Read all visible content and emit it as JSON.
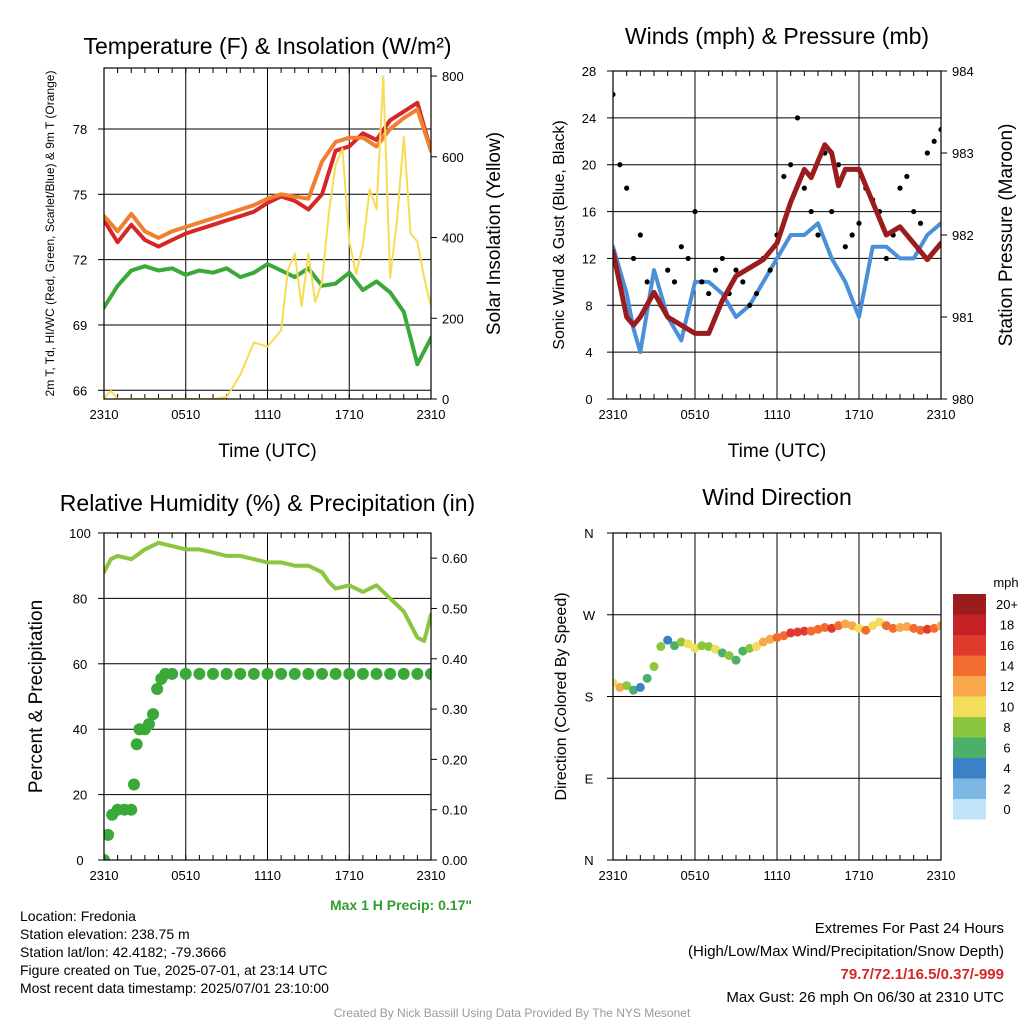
{
  "chart_data": [
    {
      "type": "line",
      "title": "Temperature (F) & Insolation (W/m²)",
      "xlabel": "Time (UTC)",
      "ylabel": "2m T, Td, HI/WC (Red, Green, Scarlet/Blue) & 9m T (Orange)",
      "y2label": "Solar Insolation (Yellow)",
      "x_ticks": [
        "2310",
        "0510",
        "1110",
        "1710",
        "2310"
      ],
      "yticks": [
        "66",
        "69",
        "72",
        "75",
        "78"
      ],
      "y2ticks": [
        "0",
        "200",
        "400",
        "600",
        "800"
      ],
      "ylim": [
        65.6,
        80.8
      ],
      "y2lim": [
        0,
        820
      ],
      "grid": true,
      "series": [
        {
          "name": "2m T",
          "color": "#d62728",
          "axis": "left",
          "x": [
            0,
            1,
            2,
            3,
            4,
            5,
            6,
            7,
            8,
            9,
            10,
            11,
            12,
            13,
            14,
            15,
            16,
            17,
            18,
            19,
            20,
            21,
            22,
            23,
            24
          ],
          "values": [
            73.8,
            72.8,
            73.6,
            72.9,
            72.6,
            72.9,
            73.2,
            73.4,
            73.6,
            73.8,
            74.0,
            74.2,
            74.6,
            74.9,
            74.7,
            74.3,
            75.0,
            77.0,
            77.2,
            77.8,
            77.5,
            78.4,
            78.8,
            79.2,
            77.0
          ]
        },
        {
          "name": "9m T",
          "color": "#f08030",
          "axis": "left",
          "x": [
            0,
            1,
            2,
            3,
            4,
            5,
            6,
            7,
            8,
            9,
            10,
            11,
            12,
            13,
            14,
            15,
            16,
            17,
            18,
            19,
            20,
            21,
            22,
            23,
            24
          ],
          "values": [
            74.0,
            73.3,
            74.1,
            73.3,
            73.0,
            73.3,
            73.5,
            73.7,
            73.9,
            74.1,
            74.3,
            74.5,
            74.8,
            75.0,
            74.9,
            74.8,
            76.5,
            77.4,
            77.6,
            77.6,
            77.2,
            78.0,
            78.5,
            78.9,
            77.0
          ]
        },
        {
          "name": "2m Td",
          "color": "#3aa93a",
          "axis": "left",
          "x": [
            0,
            1,
            2,
            3,
            4,
            5,
            6,
            7,
            8,
            9,
            10,
            11,
            12,
            13,
            14,
            15,
            16,
            17,
            18,
            19,
            20,
            21,
            22,
            23,
            24
          ],
          "values": [
            69.8,
            70.8,
            71.5,
            71.7,
            71.5,
            71.6,
            71.3,
            71.5,
            71.4,
            71.6,
            71.2,
            71.4,
            71.8,
            71.5,
            71.2,
            71.6,
            70.8,
            70.9,
            71.4,
            70.6,
            71.0,
            70.5,
            69.6,
            67.2,
            68.4
          ]
        },
        {
          "name": "Solar Insolation",
          "color": "#f7dc53",
          "axis": "right",
          "x": [
            0,
            0.5,
            1,
            2,
            3,
            4,
            5,
            6,
            7,
            8,
            9,
            10,
            11,
            12,
            13,
            13.5,
            14,
            14.5,
            15,
            15.5,
            16,
            16.5,
            17,
            17.5,
            18,
            18.5,
            19,
            19.5,
            20,
            20.5,
            21,
            21.5,
            22,
            22.5,
            23,
            23.5,
            24
          ],
          "values": [
            2,
            20,
            0,
            0,
            0,
            0,
            0,
            0,
            0,
            0,
            5,
            60,
            140,
            130,
            170,
            320,
            360,
            230,
            360,
            240,
            290,
            460,
            580,
            620,
            390,
            310,
            380,
            520,
            470,
            800,
            300,
            440,
            650,
            410,
            390,
            300,
            230
          ]
        }
      ]
    },
    {
      "type": "line",
      "title": "Winds (mph) & Pressure (mb)",
      "xlabel": "Time (UTC)",
      "ylabel": "Sonic Wind & Gust (Blue, Black)",
      "y2label": "Station Pressure (Maroon)",
      "x_ticks": [
        "2310",
        "0510",
        "1110",
        "1710",
        "2310"
      ],
      "yticks": [
        "0",
        "4",
        "8",
        "12",
        "16",
        "20",
        "24",
        "28"
      ],
      "y2ticks": [
        "980",
        "981",
        "982",
        "983",
        "984"
      ],
      "ylim": [
        0,
        28
      ],
      "y2lim": [
        980,
        984
      ],
      "grid": true,
      "series": [
        {
          "name": "Sonic Wind",
          "color": "#4a90d9",
          "axis": "left",
          "x": [
            0,
            1,
            1.5,
            2,
            3,
            4,
            5,
            6,
            7,
            8,
            9,
            10,
            11,
            12,
            13,
            14,
            15,
            16,
            17,
            18,
            19,
            20,
            21,
            22,
            23,
            24
          ],
          "values": [
            13,
            9,
            6,
            4,
            11,
            7,
            5,
            10,
            10,
            9,
            7,
            8,
            10,
            12,
            14,
            14,
            15,
            12,
            10,
            7,
            13,
            13,
            12,
            12,
            14,
            15
          ]
        },
        {
          "name": "Gust",
          "color": "#000000",
          "axis": "left",
          "style": "points",
          "x": [
            0,
            0.5,
            1,
            1.5,
            2,
            2.5,
            3,
            3.5,
            4,
            4.5,
            5,
            5.5,
            6,
            6.5,
            7,
            7.5,
            8,
            8.5,
            9,
            9.5,
            10,
            10.5,
            11,
            11.5,
            12,
            12.5,
            13,
            13.5,
            14,
            14.5,
            15,
            15.5,
            16,
            16.5,
            17,
            17.5,
            18,
            18.5,
            19,
            19.5,
            20,
            20.5,
            21,
            21.5,
            22,
            22.5,
            23,
            23.5,
            24
          ],
          "values": [
            26,
            20,
            18,
            12,
            14,
            10,
            9,
            8,
            11,
            10,
            13,
            12,
            16,
            10,
            9,
            11,
            12,
            9,
            11,
            10,
            8,
            9,
            12,
            11,
            14,
            19,
            20,
            24,
            18,
            16,
            14,
            21,
            16,
            20,
            13,
            14,
            15,
            18,
            17,
            16,
            12,
            14,
            18,
            19,
            16,
            15,
            21,
            22,
            23
          ]
        },
        {
          "name": "Station Pressure",
          "color": "#9b1c1c",
          "axis": "right",
          "x": [
            0,
            1,
            1.5,
            2,
            3,
            4,
            5,
            6,
            7,
            8,
            9,
            10,
            11,
            12,
            13,
            14,
            14.5,
            15,
            15.5,
            16,
            16.5,
            17,
            18,
            19,
            20,
            21,
            22,
            23,
            24
          ],
          "values": [
            981.8,
            981.0,
            980.9,
            981.0,
            981.3,
            981.0,
            980.9,
            980.8,
            980.8,
            981.2,
            981.5,
            981.6,
            981.7,
            981.9,
            982.4,
            982.8,
            982.7,
            982.9,
            983.1,
            983.0,
            982.6,
            982.8,
            982.8,
            982.4,
            982.0,
            982.1,
            981.9,
            981.7,
            981.9
          ]
        }
      ]
    },
    {
      "type": "line",
      "title": "Relative Humidity (%) & Precipitation (in)",
      "xlabel": "",
      "ylabel": "Percent & Precipitation",
      "x_ticks": [
        "2310",
        "0510",
        "1110",
        "1710",
        "2310"
      ],
      "yticks": [
        "0",
        "20",
        "40",
        "60",
        "80",
        "100"
      ],
      "y2ticks": [
        "0.00",
        "0.10",
        "0.20",
        "0.30",
        "0.40",
        "0.50",
        "0.60"
      ],
      "ylim": [
        0,
        100
      ],
      "y2lim": [
        0,
        0.65
      ],
      "grid": true,
      "annotation": "Max 1 H Precip: 0.17\"",
      "series": [
        {
          "name": "Relative Humidity",
          "color": "#8cc63f",
          "axis": "left",
          "x": [
            0,
            0.5,
            1,
            2,
            3,
            4,
            5,
            6,
            7,
            8,
            9,
            10,
            11,
            12,
            13,
            14,
            15,
            16,
            16.5,
            17,
            18,
            19,
            20,
            21,
            22,
            23,
            23.5,
            24
          ],
          "values": [
            88,
            92,
            93,
            92,
            95,
            97,
            96,
            95,
            95,
            94,
            93,
            93,
            92,
            91,
            91,
            90,
            90,
            88,
            85,
            83,
            84,
            82,
            84,
            80,
            76,
            68,
            67,
            75
          ]
        },
        {
          "name": "Precipitation",
          "color": "#3aa93a",
          "axis": "right",
          "style": "points",
          "x": [
            0,
            0.3,
            0.6,
            1,
            1.5,
            2,
            2.2,
            2.4,
            2.6,
            3,
            3.3,
            3.6,
            3.9,
            4.2,
            4.5,
            5,
            6,
            7,
            8,
            9,
            10,
            11,
            12,
            13,
            14,
            15,
            16,
            17,
            18,
            19,
            20,
            21,
            22,
            23,
            24
          ],
          "values": [
            0,
            0.05,
            0.09,
            0.1,
            0.1,
            0.1,
            0.15,
            0.23,
            0.26,
            0.26,
            0.27,
            0.29,
            0.34,
            0.36,
            0.37,
            0.37,
            0.37,
            0.37,
            0.37,
            0.37,
            0.37,
            0.37,
            0.37,
            0.37,
            0.37,
            0.37,
            0.37,
            0.37,
            0.37,
            0.37,
            0.37,
            0.37,
            0.37,
            0.37,
            0.37
          ]
        }
      ]
    },
    {
      "type": "scatter",
      "title": "Wind Direction",
      "xlabel": "",
      "ylabel": "Direction (Colored By Speed)",
      "x_ticks": [
        "2310",
        "0510",
        "1110",
        "1710",
        "2310"
      ],
      "yticks": [
        "N",
        "E",
        "S",
        "W",
        "N"
      ],
      "ylim": [
        0,
        360
      ],
      "grid": true,
      "colorbar": {
        "label": "mph",
        "levels": [
          "20+",
          "18",
          "16",
          "14",
          "12",
          "10",
          "8",
          "6",
          "4",
          "2",
          "0"
        ],
        "colors": [
          "#9b1c1c",
          "#c62127",
          "#e03a2f",
          "#f26b2f",
          "#f8a84a",
          "#f2de5a",
          "#8cc63f",
          "#4caf6a",
          "#3b82c4",
          "#7cb7e6",
          "#bfe3f7"
        ]
      },
      "series": [
        {
          "name": "Direction",
          "speed_colored": true,
          "x": [
            0,
            0.5,
            1,
            1.5,
            2,
            2.5,
            3,
            3.5,
            4,
            4.5,
            5,
            5.5,
            6,
            6.5,
            7,
            7.5,
            8,
            8.5,
            9,
            9.5,
            10,
            10.5,
            11,
            11.5,
            12,
            12.5,
            13,
            13.5,
            14,
            14.5,
            15,
            15.5,
            16,
            16.5,
            17,
            17.5,
            18,
            18.5,
            19,
            19.5,
            20,
            20.5,
            21,
            21.5,
            22,
            22.5,
            23,
            23.5,
            24
          ],
          "values": [
            195,
            190,
            192,
            187,
            190,
            200,
            213,
            235,
            242,
            236,
            240,
            238,
            233,
            236,
            235,
            232,
            228,
            225,
            220,
            230,
            233,
            235,
            240,
            243,
            245,
            247,
            250,
            251,
            252,
            252,
            254,
            256,
            255,
            258,
            260,
            258,
            255,
            253,
            258,
            262,
            258,
            255,
            256,
            257,
            255,
            253,
            254,
            255,
            258
          ],
          "speeds": [
            10,
            12,
            9,
            7,
            4,
            6,
            8,
            9,
            5,
            7,
            9,
            10,
            11,
            9,
            8,
            10,
            7,
            8,
            6,
            7,
            8,
            10,
            12,
            13,
            14,
            15,
            16,
            17,
            16,
            15,
            14,
            15,
            16,
            14,
            13,
            12,
            10,
            14,
            11,
            10,
            14,
            15,
            13,
            12,
            14,
            15,
            16,
            14,
            13
          ]
        }
      ]
    }
  ],
  "station": {
    "location": "Location: Fredonia",
    "elevation": "Station elevation: 238.75 m",
    "latlon": "Station lat/lon: 42.4182; -79.3666",
    "created": "Figure created on Tue, 2025-07-01, at 23:14 UTC",
    "recent": "Most recent data timestamp: 2025/07/01 23:10:00"
  },
  "extremes": {
    "heading": "Extremes For Past 24 Hours",
    "subheading": "(High/Low/Max Wind/Precipitation/Snow Depth)",
    "values": "79.7/72.1/16.5/0.37/-999",
    "gust": "Max Gust: 26 mph On 06/30 at 2310 UTC"
  },
  "credit": "Created By Nick Bassill Using Data Provided By The NYS Mesonet"
}
